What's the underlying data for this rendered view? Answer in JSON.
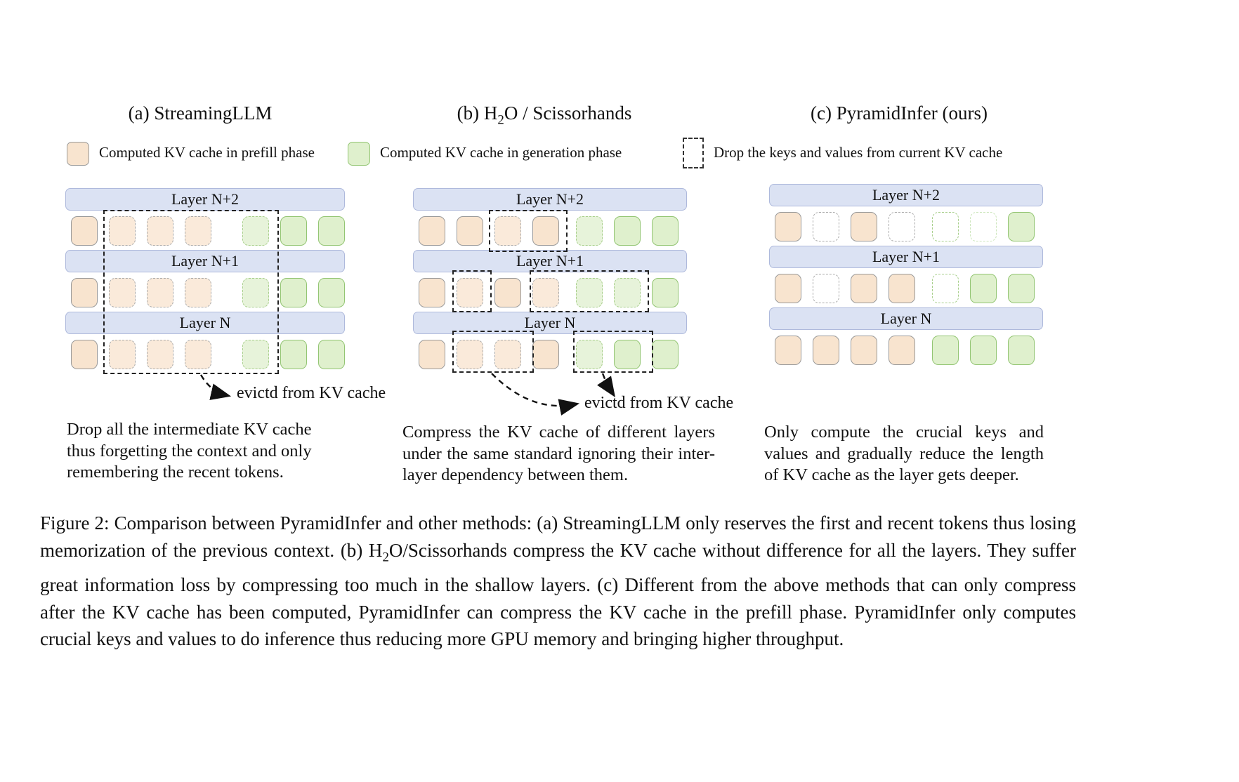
{
  "panels": {
    "a": {
      "title": "(a) StreamingLLM"
    },
    "b": {
      "title_pre": "(b) H",
      "title_sub": "2",
      "title_post": "O / Scissorhands"
    },
    "c": {
      "title": "(c) PyramidInfer (ours)"
    }
  },
  "legend": {
    "prefill": {
      "label": "Computed KV cache in prefill phase"
    },
    "generation": {
      "label": "Computed KV cache in generation phase"
    },
    "drop": {
      "label": "Drop the keys and values from current KV cache"
    }
  },
  "diagrams": {
    "a": {
      "layers": [
        {
          "label": "Layer N+2",
          "cells": [
            "prefill",
            "prefill_dashed",
            "prefill_dashed",
            "prefill_dashed",
            "gen_dashed",
            "gen",
            "gen"
          ]
        },
        {
          "label": "Layer N+1",
          "cells": [
            "prefill",
            "prefill_dashed",
            "prefill_dashed",
            "prefill_dashed",
            "gen_dashed",
            "gen",
            "gen"
          ]
        },
        {
          "label": "Layer N",
          "cells": [
            "prefill",
            "prefill_dashed",
            "prefill_dashed",
            "prefill_dashed",
            "gen_dashed",
            "gen",
            "gen"
          ]
        }
      ],
      "evict_label": "evictd from KV cache"
    },
    "b": {
      "layers": [
        {
          "label": "Layer N+2",
          "cells": [
            "prefill",
            "prefill",
            "prefill_dashed",
            "prefill",
            "gen_dashed",
            "gen",
            "gen"
          ]
        },
        {
          "label": "Layer N+1",
          "cells": [
            "prefill",
            "prefill_dashed",
            "prefill",
            "prefill_dashed",
            "gen_dashed",
            "gen_dashed",
            "gen"
          ]
        },
        {
          "label": "Layer N",
          "cells": [
            "prefill",
            "prefill_dashed",
            "prefill_dashed",
            "prefill",
            "gen_dashed",
            "gen",
            "gen"
          ]
        }
      ],
      "evict_label": "evictd from KV cache"
    },
    "c": {
      "layers": [
        {
          "label": "Layer N+2",
          "cells": [
            "prefill",
            "empty_gray",
            "prefill",
            "empty_gray",
            "empty_green",
            "empty_green_faint",
            "gen"
          ]
        },
        {
          "label": "Layer N+1",
          "cells": [
            "prefill",
            "empty_gray",
            "prefill",
            "prefill",
            "empty_green",
            "gen",
            "gen"
          ]
        },
        {
          "label": "Layer N",
          "cells": [
            "prefill",
            "prefill",
            "prefill",
            "prefill",
            "gen",
            "gen",
            "gen"
          ]
        }
      ]
    }
  },
  "descriptions": {
    "a": "Drop all the intermediate KV cache thus forgetting the context and only remembering the recent tokens.",
    "b": "Compress the KV cache of different layers under the same standard ignoring their inter-layer dependency between them.",
    "c": "Only compute the crucial keys and values and gradually reduce the length of KV cache as the layer gets deeper."
  },
  "caption": {
    "p1": "Figure 2: Comparison between PyramidInfer and other methods: (a) StreamingLLM only reserves the first and recent tokens thus losing memorization of the previous context. (b) H",
    "sub": "2",
    "p2": "O/Scissorhands compress the KV cache without difference for all the layers. They suffer great information loss by compressing too much in the shallow layers. (c) Different from the above methods that can only compress after the KV cache has been computed, PyramidInfer can compress the KV cache in the prefill phase. PyramidInfer only computes crucial keys and values to do inference thus reducing more GPU memory and bringing higher throughput."
  },
  "colors": {
    "prefill_fill": "#F8E4CF",
    "prefill_fill_light": "#FAEADA",
    "generation_fill": "#DFF0CD",
    "generation_fill_light": "#E7F3DA",
    "generation_border": "#93C573",
    "generation_border_light": "#A8CF8B",
    "layer_bar_fill": "#DBE2F3",
    "layer_bar_border": "#AEB9DC"
  }
}
